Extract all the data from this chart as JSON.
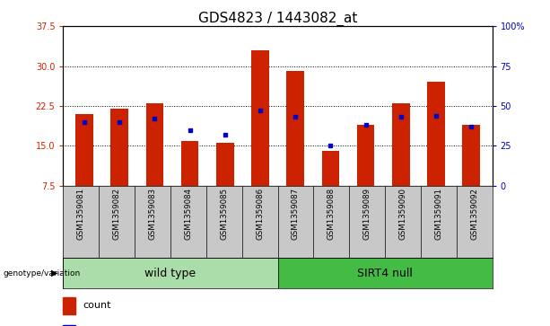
{
  "title": "GDS4823 / 1443082_at",
  "samples": [
    "GSM1359081",
    "GSM1359082",
    "GSM1359083",
    "GSM1359084",
    "GSM1359085",
    "GSM1359086",
    "GSM1359087",
    "GSM1359088",
    "GSM1359089",
    "GSM1359090",
    "GSM1359091",
    "GSM1359092"
  ],
  "counts": [
    21.0,
    22.0,
    23.0,
    16.0,
    15.5,
    33.0,
    29.0,
    14.0,
    19.0,
    23.0,
    27.0,
    19.0
  ],
  "percentiles": [
    40,
    40,
    42,
    35,
    32,
    47,
    43,
    25,
    38,
    43,
    44,
    37
  ],
  "groups": [
    "wild type",
    "wild type",
    "wild type",
    "wild type",
    "wild type",
    "wild type",
    "SIRT4 null",
    "SIRT4 null",
    "SIRT4 null",
    "SIRT4 null",
    "SIRT4 null",
    "SIRT4 null"
  ],
  "group_colors": {
    "wild type": "#AADDAA",
    "SIRT4 null": "#44BB44"
  },
  "bar_color": "#CC2200",
  "percentile_color": "#0000CC",
  "ylim_left": [
    7.5,
    37.5
  ],
  "yticks_left": [
    7.5,
    15.0,
    22.5,
    30.0,
    37.5
  ],
  "ylim_right": [
    0,
    100
  ],
  "yticks_right": [
    0,
    25,
    50,
    75,
    100
  ],
  "title_fontsize": 11,
  "tick_fontsize": 7,
  "bar_width": 0.5,
  "red_color": "#CC2200",
  "blue_color": "#0000BB",
  "group_label_fontsize": 9,
  "gray_bg": "#C8C8C8"
}
